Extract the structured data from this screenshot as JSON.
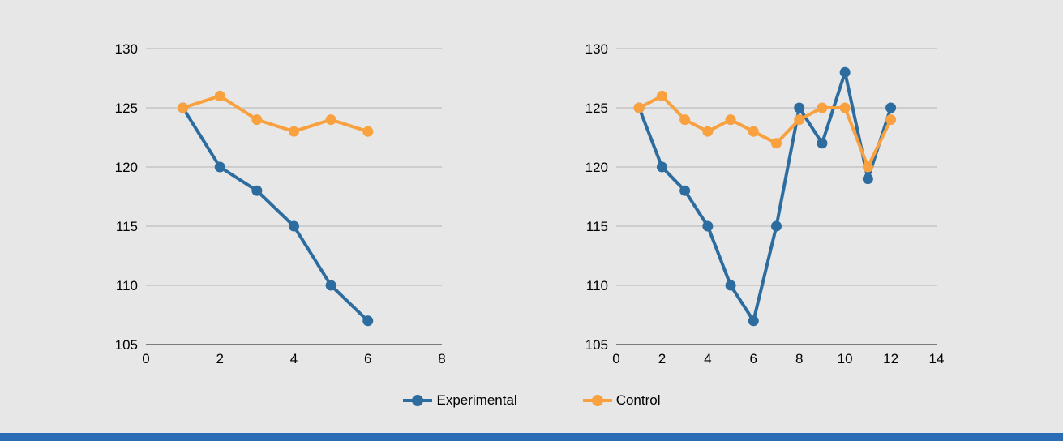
{
  "colors": {
    "background": "#e7e7e7",
    "bottom_bar": "#2a6cb5",
    "grid": "#b3b3b3",
    "axis": "#595959",
    "text": "#000000",
    "experimental": "#2d6c9f",
    "control": "#f8a13e"
  },
  "legend": {
    "items": [
      {
        "label": "Experimental",
        "color_key": "experimental"
      },
      {
        "label": "Control",
        "color_key": "control"
      }
    ]
  },
  "chart_data": [
    {
      "type": "line",
      "title": "",
      "xlabel": "",
      "ylabel": "",
      "x": [
        1,
        2,
        3,
        4,
        5,
        6
      ],
      "series": [
        {
          "name": "Experimental",
          "color_key": "experimental",
          "values": [
            125,
            120,
            118,
            115,
            110,
            107
          ]
        },
        {
          "name": "Control",
          "color_key": "control",
          "values": [
            125,
            126,
            124,
            123,
            124,
            123
          ]
        }
      ],
      "xlim": [
        0,
        8
      ],
      "xticks": [
        0,
        2,
        4,
        6,
        8
      ],
      "ylim": [
        105,
        130
      ],
      "yticks": [
        105,
        110,
        115,
        120,
        125,
        130
      ],
      "grid": true,
      "legend_position": "bottom-shared"
    },
    {
      "type": "line",
      "title": "",
      "xlabel": "",
      "ylabel": "",
      "x": [
        1,
        2,
        3,
        4,
        5,
        6,
        7,
        8,
        9,
        10,
        11,
        12
      ],
      "series": [
        {
          "name": "Experimental",
          "color_key": "experimental",
          "values": [
            125,
            120,
            118,
            115,
            110,
            107,
            115,
            125,
            122,
            128,
            119,
            125
          ]
        },
        {
          "name": "Control",
          "color_key": "control",
          "values": [
            125,
            126,
            124,
            123,
            124,
            123,
            122,
            124,
            125,
            125,
            120,
            124
          ]
        }
      ],
      "xlim": [
        0,
        14
      ],
      "xticks": [
        0,
        2,
        4,
        6,
        8,
        10,
        12,
        14
      ],
      "ylim": [
        105,
        130
      ],
      "yticks": [
        105,
        110,
        115,
        120,
        125,
        130
      ],
      "grid": true,
      "legend_position": "bottom-shared"
    }
  ]
}
